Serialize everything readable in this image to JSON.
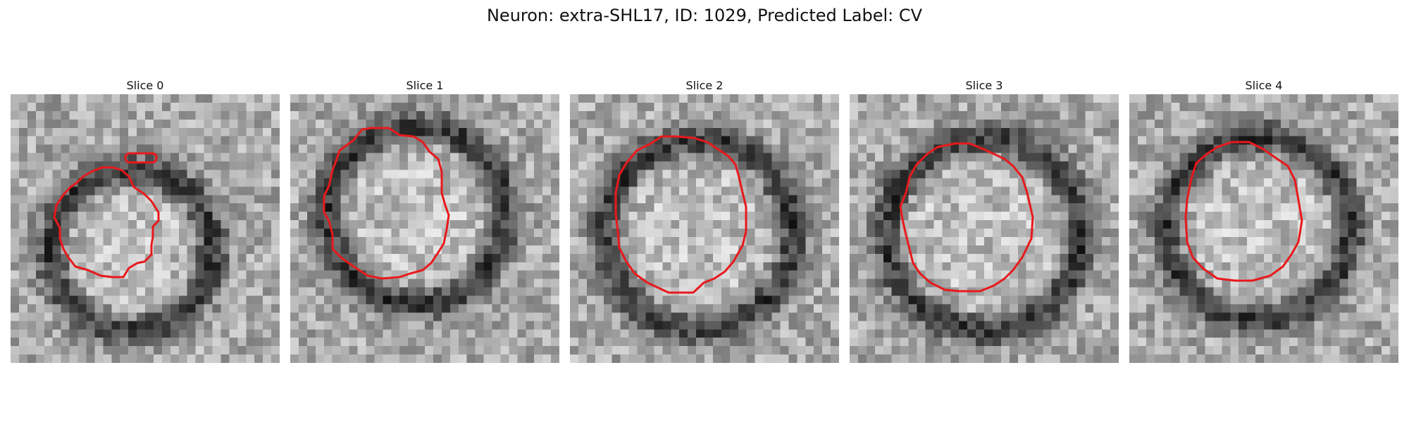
{
  "figure": {
    "title": "Neuron: extra-SHL17, ID: 1029, Predicted Label: CV",
    "contour_color": "#e8191c"
  },
  "slices": [
    {
      "label": "Slice 0"
    },
    {
      "label": "Slice 1"
    },
    {
      "label": "Slice 2"
    },
    {
      "label": "Slice 3"
    },
    {
      "label": "Slice 4"
    }
  ]
}
